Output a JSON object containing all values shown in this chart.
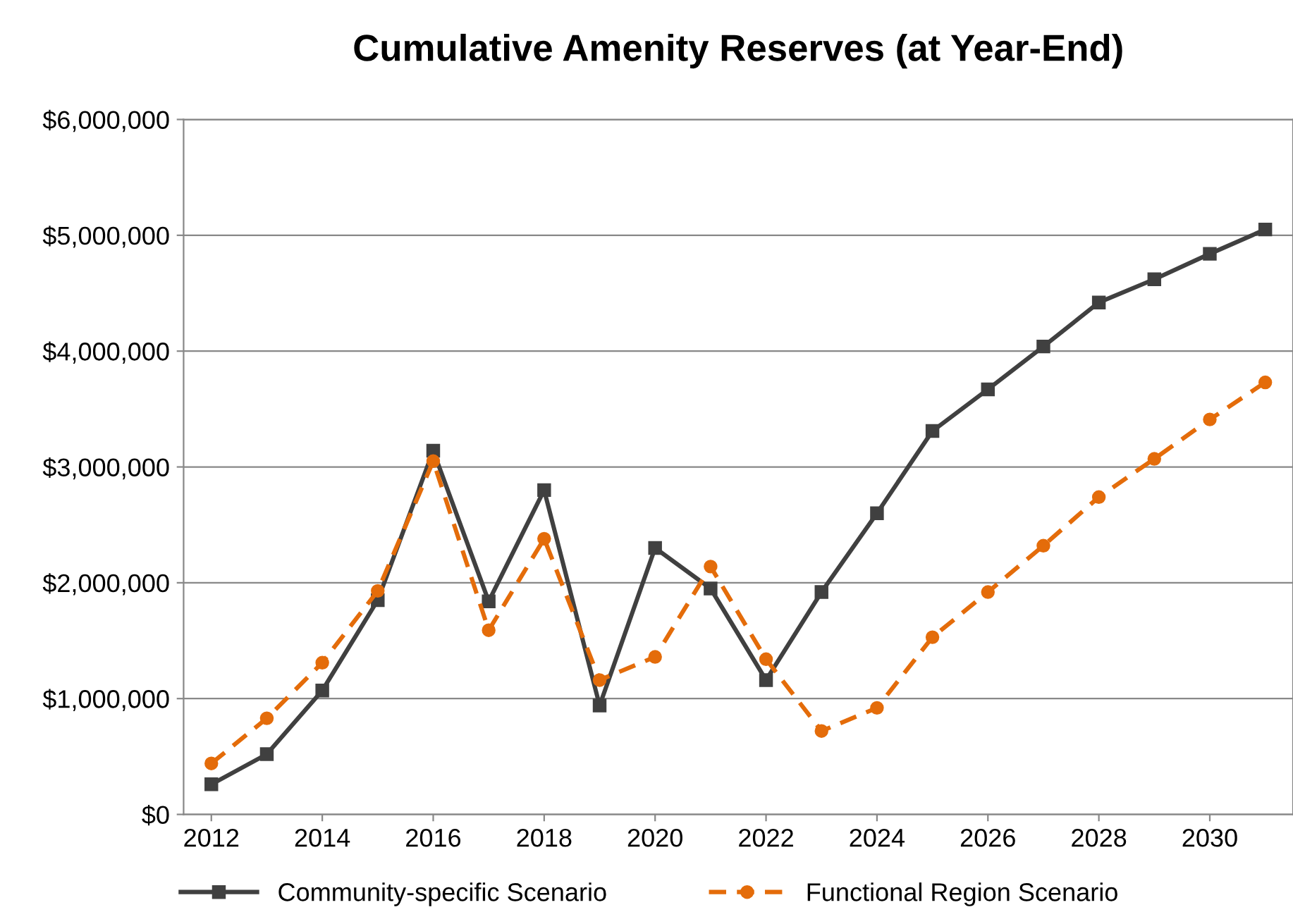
{
  "chart_data": {
    "type": "line",
    "title": "Cumulative Amenity Reserves (at Year-End)",
    "x": [
      2012,
      2013,
      2014,
      2015,
      2016,
      2017,
      2018,
      2019,
      2020,
      2021,
      2022,
      2023,
      2024,
      2025,
      2026,
      2027,
      2028,
      2029,
      2030,
      2031
    ],
    "series": [
      {
        "name": "Community-specific Scenario",
        "color": "#404040",
        "marker": "square",
        "line_style": "solid",
        "values": [
          260000,
          520000,
          1070000,
          1850000,
          3140000,
          1840000,
          2800000,
          940000,
          2300000,
          1950000,
          1160000,
          1920000,
          2600000,
          3310000,
          3670000,
          4040000,
          4420000,
          4620000,
          4840000,
          5050000
        ]
      },
      {
        "name": "Functional Region Scenario",
        "color": "#e46c0a",
        "marker": "circle",
        "line_style": "dashed",
        "values": [
          440000,
          830000,
          1310000,
          1930000,
          3050000,
          1590000,
          2380000,
          1160000,
          1360000,
          2140000,
          1340000,
          720000,
          920000,
          1530000,
          1920000,
          2320000,
          2740000,
          3070000,
          3410000,
          3730000
        ]
      }
    ],
    "xlim": [
      2011.5,
      2031.5
    ],
    "xticks": [
      2012,
      2014,
      2016,
      2018,
      2020,
      2022,
      2024,
      2026,
      2028,
      2030
    ],
    "ylim": [
      0,
      6000000
    ],
    "yticks": [
      {
        "value": 0,
        "label": "$0"
      },
      {
        "value": 1000000,
        "label": "$1,000,000"
      },
      {
        "value": 2000000,
        "label": "$2,000,000"
      },
      {
        "value": 3000000,
        "label": "$3,000,000"
      },
      {
        "value": 4000000,
        "label": "$4,000,000"
      },
      {
        "value": 5000000,
        "label": "$5,000,000"
      },
      {
        "value": 6000000,
        "label": "$6,000,000"
      }
    ],
    "grid": "y",
    "legend": "bottom"
  }
}
